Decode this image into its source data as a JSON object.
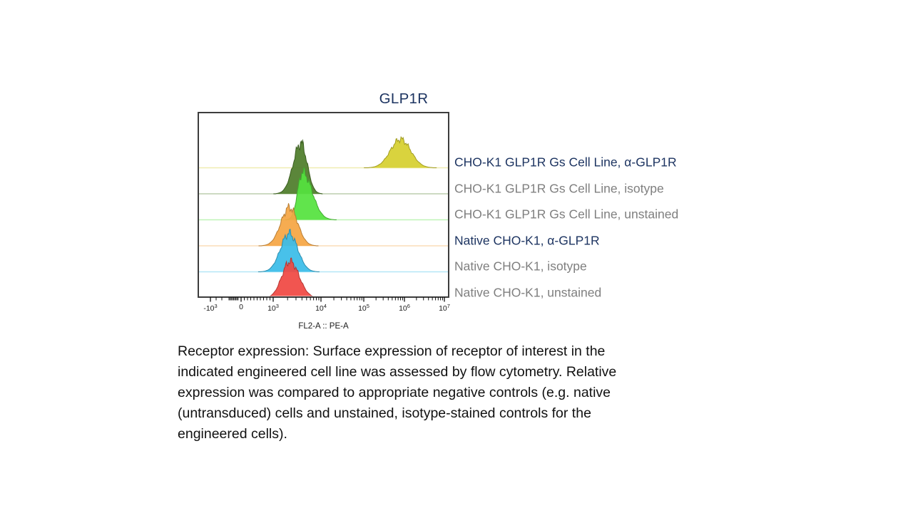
{
  "page": {
    "background_color": "#ffffff"
  },
  "figure": {
    "title": "GLP1R",
    "title_color": "#1d3461",
    "plot_border_color": "#3d3d3d",
    "axis": {
      "label": "FL2-A :: PE-A",
      "ticks": [
        {
          "base": "-10",
          "exp": "3"
        },
        {
          "base": "0",
          "exp": ""
        },
        {
          "base": "10",
          "exp": "3"
        },
        {
          "base": "10",
          "exp": "4"
        },
        {
          "base": "10",
          "exp": "5"
        },
        {
          "base": "10",
          "exp": "6"
        },
        {
          "base": "10",
          "exp": "7"
        }
      ]
    },
    "chart_data": {
      "type": "area",
      "subtype": "flow-cytometry-offset-histograms",
      "title": "GLP1R",
      "xlabel": "FL2-A :: PE-A",
      "ylabel": "",
      "x_scale": "biexponential-log",
      "x_ticks": [
        "-10^3",
        "0",
        "10^3",
        "10^4",
        "10^5",
        "10^6",
        "10^7"
      ],
      "x_range": [
        "-10^3",
        "10^7"
      ],
      "grid": false,
      "legend_position": "right of plot, one label per histogram row",
      "note": "Six population histograms stacked top-to-bottom with vertical offsets; each row has a pale baseline in its fill color. Peak height is relative to one row spacing.",
      "series": [
        {
          "label": "CHO-K1 GLP1R Gs Cell Line, α-GLP1R",
          "row": 1,
          "fill_color": "#d6d02f",
          "label_color": "#1d3461",
          "median_fl2a": 800000,
          "peak_height_rel": 1.1,
          "spread_lo_decades": 0.25,
          "spread_hi_decades": 0.25
        },
        {
          "label": "CHO-K1 GLP1R Gs Cell Line, isotype",
          "row": 2,
          "fill_color": "#4f7d2b",
          "label_color": "#7f7f7f",
          "median_fl2a": 3800,
          "peak_height_rel": 1.95,
          "spread_lo_decades": 0.16,
          "spread_hi_decades": 0.13
        },
        {
          "label": "CHO-K1 GLP1R Gs Cell Line, unstained",
          "row": 3,
          "fill_color": "#55e23e",
          "label_color": "#7f7f7f",
          "median_fl2a": 4100,
          "peak_height_rel": 1.83,
          "spread_lo_decades": 0.1,
          "spread_hi_decades": 0.2
        },
        {
          "label": "Native CHO-K1, α-GLP1R",
          "row": 4,
          "fill_color": "#f5a644",
          "label_color": "#1d3461",
          "median_fl2a": 2200,
          "peak_height_rel": 1.48,
          "spread_lo_decades": 0.18,
          "spread_hi_decades": 0.17
        },
        {
          "label": "Native CHO-K1, isotype",
          "row": 5,
          "fill_color": "#3abce8",
          "label_color": "#7f7f7f",
          "median_fl2a": 2150,
          "peak_height_rel": 1.48,
          "spread_lo_decades": 0.18,
          "spread_hi_decades": 0.18
        },
        {
          "label": "Native CHO-K1, unstained",
          "row": 6,
          "fill_color": "#f04843",
          "label_color": "#7f7f7f",
          "median_fl2a": 2250,
          "peak_height_rel": 1.4,
          "spread_lo_decades": 0.17,
          "spread_hi_decades": 0.19
        }
      ]
    }
  },
  "caption": {
    "lines": [
      "Receptor expression:  Surface expression of receptor of interest in the",
      "indicated engineered cell line was assessed by flow cytometry. Relative",
      "expression was compared to appropriate negative controls (e.g. native",
      "(untransduced) cells and unstained, isotype-stained controls for the",
      "engineered cells)."
    ]
  }
}
